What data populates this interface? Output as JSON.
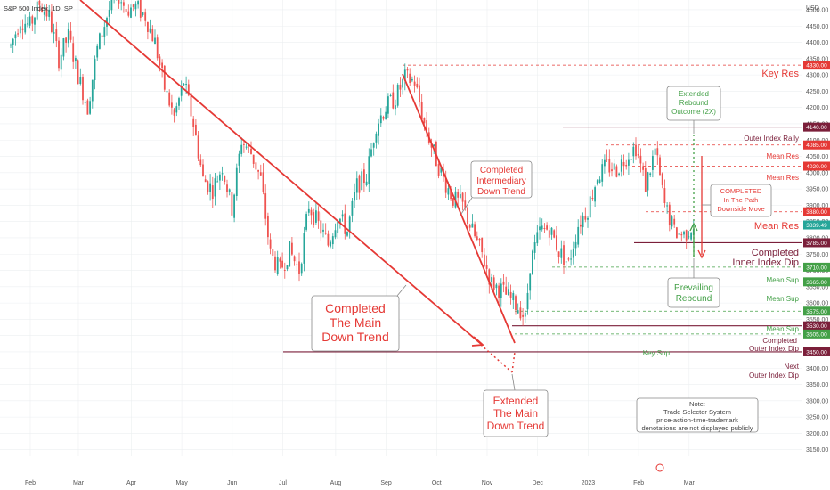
{
  "header": {
    "symbol_label": "S&P 500 Index, 1D, SP"
  },
  "colors": {
    "up": "#26a69a",
    "down": "#ef5350",
    "red": "#e53935",
    "green": "#43a047",
    "maroon": "#7b1f3a",
    "grid": "#eceff1"
  },
  "chart_data": {
    "type": "candlestick",
    "yaxis": {
      "title": "USD",
      "range": [
        3140,
        4540
      ],
      "ticks": [
        4500,
        4450,
        4400,
        4350,
        4300,
        4250,
        4200,
        4150,
        4100,
        4050,
        4000,
        3950,
        3900,
        3850,
        3800,
        3750,
        3700,
        3650,
        3600,
        3550,
        3500,
        3450,
        3400,
        3350,
        3300,
        3250,
        3200,
        3150
      ],
      "tick_labels": [
        "4500.00",
        "4450.00",
        "4400.00",
        "4350.00",
        "4300.00",
        "4250.00",
        "4200.00",
        "4150.00",
        "4100.00",
        "4050.00",
        "4000.00",
        "3950.00",
        "3900.00",
        "3850.00",
        "3800.00",
        "3750.00",
        "3700.00",
        "3650.00",
        "3600.00",
        "3550.00",
        "3500.00",
        "3450.00",
        "3400.00",
        "3350.00",
        "3300.00",
        "3250.00",
        "3200.00",
        "3150.00"
      ]
    },
    "xaxis": {
      "months": [
        "Feb",
        "Mar",
        "Apr",
        "May",
        "Jun",
        "Jul",
        "Aug",
        "Sep",
        "Oct",
        "Nov",
        "Dec",
        "2023",
        "Feb",
        "Mar"
      ],
      "month_index": [
        0,
        20,
        42,
        63,
        84,
        105,
        127,
        148,
        169,
        190,
        211,
        232,
        253,
        274
      ]
    },
    "price_path": [
      [
        0,
        4390
      ],
      [
        4,
        4470
      ],
      [
        8,
        4450
      ],
      [
        12,
        4520
      ],
      [
        16,
        4480
      ],
      [
        20,
        4350
      ],
      [
        24,
        4420
      ],
      [
        28,
        4300
      ],
      [
        32,
        4200
      ],
      [
        36,
        4380
      ],
      [
        40,
        4480
      ],
      [
        44,
        4560
      ],
      [
        48,
        4500
      ],
      [
        52,
        4510
      ],
      [
        56,
        4480
      ],
      [
        60,
        4400
      ],
      [
        64,
        4260
      ],
      [
        68,
        4170
      ],
      [
        72,
        4280
      ],
      [
        76,
        4150
      ],
      [
        80,
        3980
      ],
      [
        84,
        3950
      ],
      [
        88,
        4020
      ],
      [
        92,
        3890
      ],
      [
        96,
        4100
      ],
      [
        100,
        4060
      ],
      [
        104,
        3980
      ],
      [
        108,
        3750
      ],
      [
        112,
        3700
      ],
      [
        116,
        3760
      ],
      [
        120,
        3700
      ],
      [
        124,
        3900
      ],
      [
        128,
        3840
      ],
      [
        132,
        3780
      ],
      [
        136,
        3870
      ],
      [
        140,
        3820
      ],
      [
        144,
        3960
      ],
      [
        148,
        3990
      ],
      [
        152,
        4150
      ],
      [
        156,
        4200
      ],
      [
        160,
        4230
      ],
      [
        164,
        4290
      ],
      [
        168,
        4280
      ],
      [
        172,
        4150
      ],
      [
        176,
        4060
      ],
      [
        180,
        3980
      ],
      [
        184,
        3920
      ],
      [
        188,
        3900
      ],
      [
        192,
        3820
      ],
      [
        196,
        3750
      ],
      [
        200,
        3660
      ],
      [
        204,
        3640
      ],
      [
        208,
        3610
      ],
      [
        212,
        3580
      ],
      [
        214,
        3550
      ],
      [
        216,
        3720
      ],
      [
        220,
        3820
      ],
      [
        224,
        3830
      ],
      [
        228,
        3760
      ],
      [
        232,
        3720
      ],
      [
        236,
        3840
      ],
      [
        240,
        3890
      ],
      [
        244,
        3990
      ],
      [
        248,
        4020
      ],
      [
        252,
        4010
      ],
      [
        256,
        4050
      ],
      [
        260,
        4080
      ],
      [
        264,
        3960
      ],
      [
        268,
        4070
      ],
      [
        272,
        3900
      ],
      [
        276,
        3820
      ],
      [
        280,
        3810
      ],
      [
        284,
        3840
      ]
    ],
    "levels": [
      {
        "label": "Key Res",
        "value": 4330,
        "value_label": "4330.00",
        "color": "#e53935",
        "style": "dashed"
      },
      {
        "label": "Outer Index Rally",
        "value": 4140,
        "value_label": "4140.00",
        "color": "#7b1f3a",
        "style": "solid"
      },
      {
        "label": "Mean Res",
        "value": 4085,
        "value_label": "4085.00",
        "color": "#e53935",
        "style": "dashed"
      },
      {
        "label": "Mean Res",
        "value": 4020,
        "value_label": "4020.00",
        "color": "#e53935",
        "style": "dashed"
      },
      {
        "label": "Mean Res",
        "value": 3880,
        "value_label": "3880.00",
        "color": "#e53935",
        "style": "dashed"
      },
      {
        "label": "",
        "value": 3839.49,
        "value_label": "3839.49",
        "color": "#26a69a",
        "style": "dotted"
      },
      {
        "label": "Completed Inner Index Dip",
        "value": 3785,
        "value_label": "3785.00",
        "color": "#7b1f3a",
        "style": "solid"
      },
      {
        "label": "Mean Sup",
        "value": 3710,
        "value_label": "3710.00",
        "color": "#43a047",
        "style": "dashed"
      },
      {
        "label": "Mean Sup",
        "value": 3665,
        "value_label": "3665.00",
        "color": "#43a047",
        "style": "dashed"
      },
      {
        "label": "Mean Sup",
        "value": 3575,
        "value_label": "3575.00",
        "color": "#43a047",
        "style": "dashed"
      },
      {
        "label": "Completed Outer Index Dip",
        "value": 3530,
        "value_label": "3530.00",
        "color": "#7b1f3a",
        "style": "solid"
      },
      {
        "label": "Key Sup",
        "value": 3505,
        "value_label": "3505.00",
        "color": "#43a047",
        "style": "dashed"
      },
      {
        "label": "Next Outer Index Dip",
        "value": 3450,
        "value_label": "3450.00",
        "color": "#7b1f3a",
        "style": "solid"
      }
    ]
  },
  "annotations": {
    "completed_main": [
      "Completed",
      "The Main",
      "Down Trend"
    ],
    "extended_main": [
      "Extended",
      "The Main",
      "Down Trend"
    ],
    "completed_intermediary": [
      "Completed",
      "Intermediary",
      "Down Trend"
    ],
    "extended_rebound": [
      "Extended",
      "Rebound",
      "Outcome (2X)"
    ],
    "completed_path": [
      "COMPLETED",
      "In The Path",
      "Downside Move"
    ],
    "prevailing_rebound": [
      "Prevailing",
      "Rebound"
    ],
    "note": [
      "Note:",
      "Trade Selecter System",
      "price-action-time-trademark",
      "denotations are not displayed publicly"
    ],
    "label_key_res": "Key Res",
    "label_outer_rally": "Outer Index Rally",
    "label_mean_res_a": "Mean Res",
    "label_mean_res_b": "Mean Res",
    "label_mean_res_c": "Mean Res",
    "label_completed_inner_1": "Completed",
    "label_completed_inner_2": "Inner Index Dip",
    "label_mean_sup_a": "Mean Sup",
    "label_mean_sup_b": "Mean Sup",
    "label_mean_sup_c": "Mean Sup",
    "label_completed_outer_1": "Completed",
    "label_completed_outer_2": "Outer Index Dip",
    "label_key_sup": "Key Sup",
    "label_next_1": "Next",
    "label_next_2": "Outer Index Dip"
  }
}
